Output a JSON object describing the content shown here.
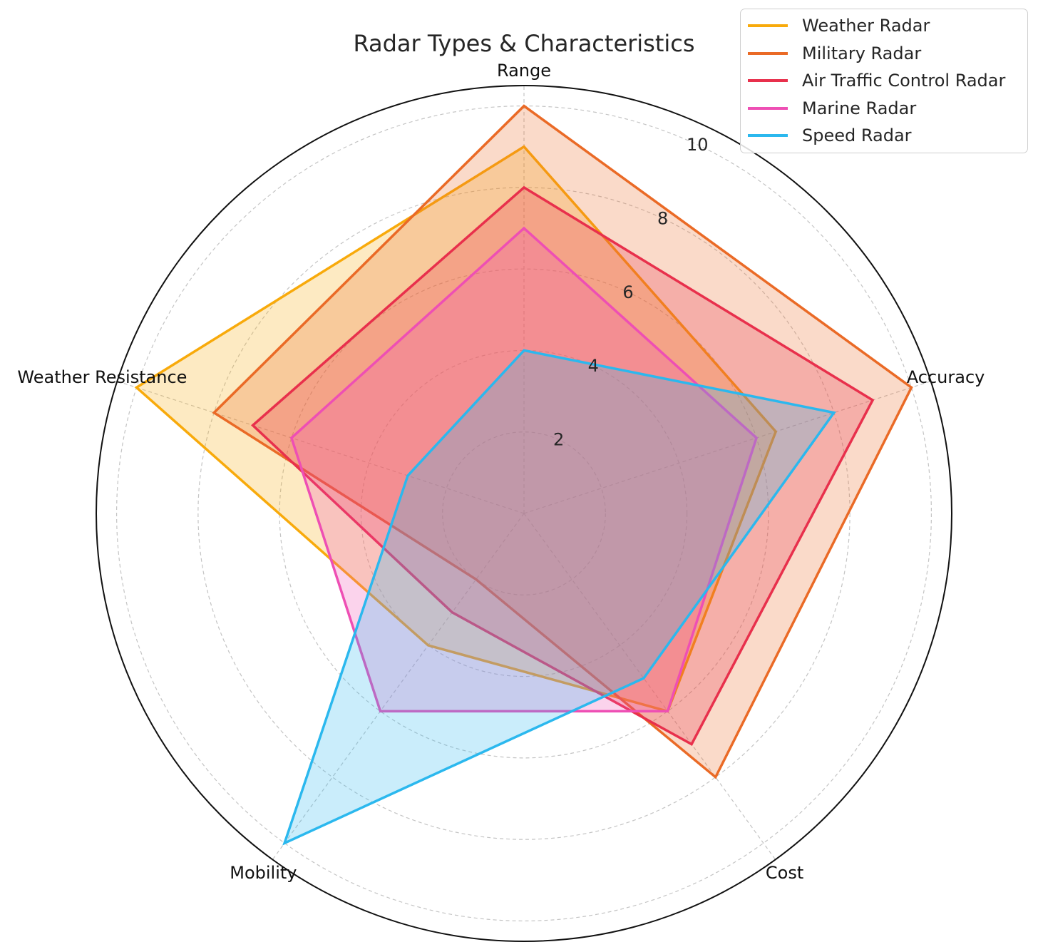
{
  "chart_data": {
    "type": "radar",
    "title": "Radar Types & Characteristics",
    "categories": [
      "Range",
      "Accuracy",
      "Cost",
      "Mobility",
      "Weather Resistance"
    ],
    "rlim": [
      0,
      10.5
    ],
    "rticks": [
      2,
      4,
      6,
      8,
      10
    ],
    "grid": true,
    "legend": "top-right",
    "series": [
      {
        "name": "Weather Radar",
        "values": [
          9,
          6.5,
          6,
          4,
          10
        ],
        "color": "#F8AA0B",
        "fill_opacity": 0.25
      },
      {
        "name": "Military Radar",
        "values": [
          10,
          10,
          8,
          2,
          8
        ],
        "color": "#EA6A26",
        "fill_opacity": 0.25
      },
      {
        "name": "Air Traffic Control Radar",
        "values": [
          8,
          9,
          7,
          3,
          7
        ],
        "color": "#E8304C",
        "fill_opacity": 0.25
      },
      {
        "name": "Marine Radar",
        "values": [
          7,
          6,
          6,
          6,
          6
        ],
        "color": "#EE4FB4",
        "fill_opacity": 0.25
      },
      {
        "name": "Speed Radar",
        "values": [
          4,
          8,
          5,
          10,
          3
        ],
        "color": "#2BB8EE",
        "fill_opacity": 0.25
      }
    ]
  }
}
